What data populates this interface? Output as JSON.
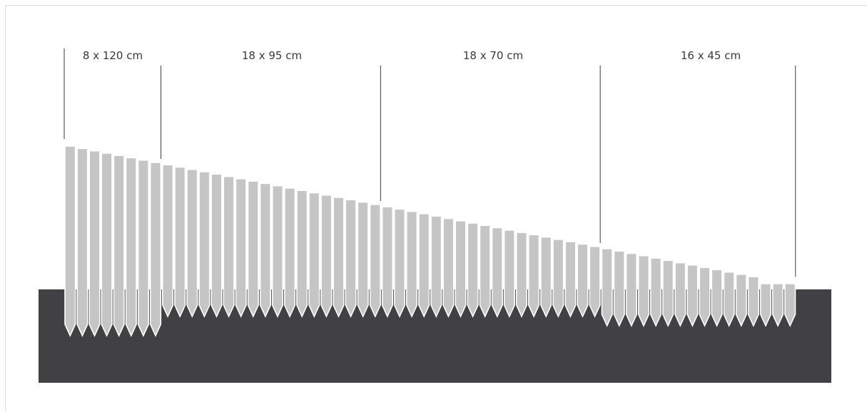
{
  "colors": {
    "ground": "#414143",
    "post": "#c4c5c4",
    "post_outline": "#ffffff",
    "divider": "#3a3a3a",
    "label_text": "#3a3a3a",
    "frame": "#dcdcdc"
  },
  "segments": [
    {
      "label": "8 x 120 cm",
      "count": 8
    },
    {
      "label": "18 x 95 cm",
      "count": 18
    },
    {
      "label": "18 x 70 cm",
      "count": 18
    },
    {
      "label": "16 x 45 cm",
      "count": 16
    }
  ]
}
